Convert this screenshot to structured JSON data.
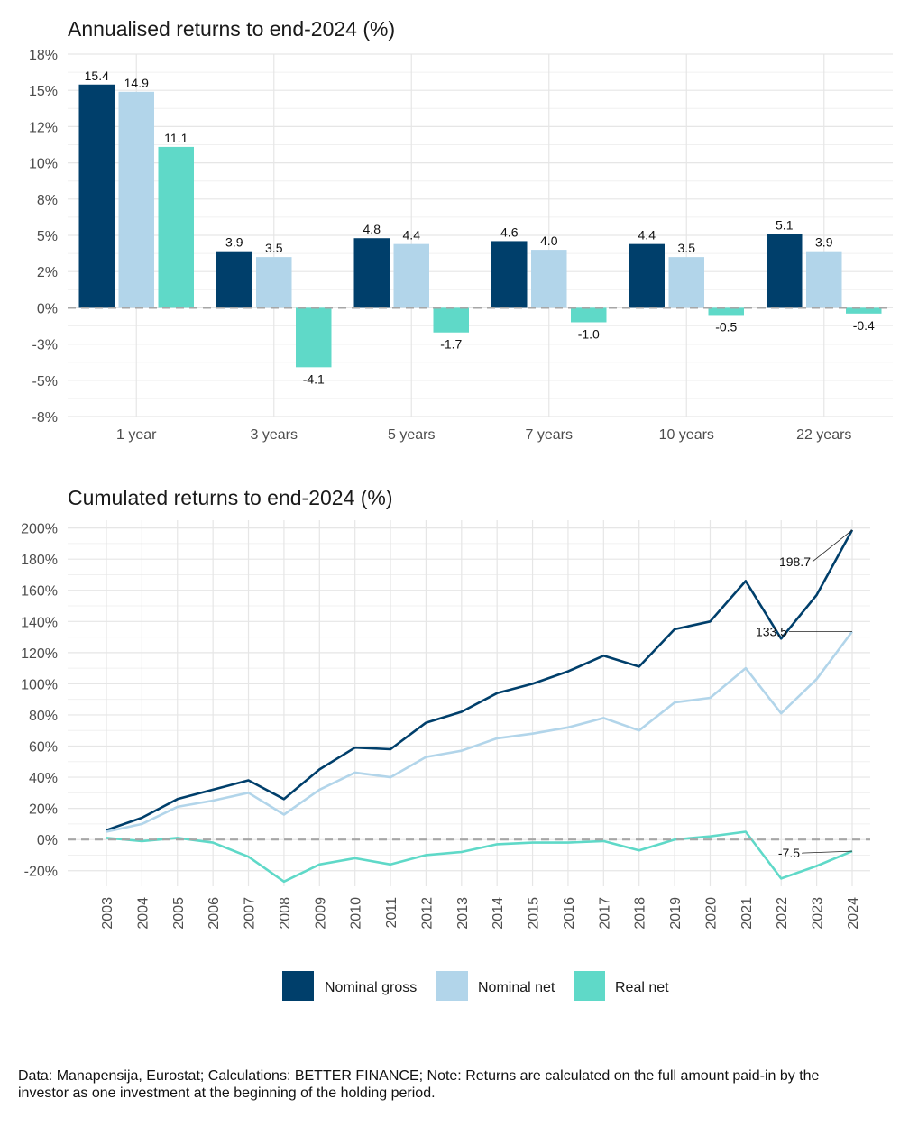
{
  "colors": {
    "nominal_gross": "#003f6b",
    "nominal_net": "#b2d5ea",
    "real_net": "#5fd9c8"
  },
  "chart_data": [
    {
      "type": "bar",
      "title": "Annualised returns to end-2024 (%)",
      "categories": [
        "1 year",
        "3 years",
        "5 years",
        "7 years",
        "10 years",
        "22 years"
      ],
      "series": [
        {
          "name": "Nominal gross",
          "values": [
            15.4,
            3.9,
            4.8,
            4.6,
            4.4,
            5.1
          ]
        },
        {
          "name": "Nominal net",
          "values": [
            14.9,
            3.5,
            4.4,
            4.0,
            3.5,
            3.9
          ]
        },
        {
          "name": "Real net",
          "values": [
            11.1,
            -4.1,
            -1.7,
            -1.0,
            -0.5,
            -0.4
          ]
        }
      ],
      "ylim": [
        -7.5,
        17.5
      ],
      "y_ticks": [
        -7.5,
        -5,
        -2.5,
        0,
        2.5,
        5,
        7.5,
        10,
        12.5,
        15,
        17.5
      ],
      "y_tick_labels": [
        "-8%",
        "-5%",
        "-3%",
        "0%",
        "2%",
        "5%",
        "8%",
        "10%",
        "12%",
        "15%",
        "18%"
      ],
      "grid": true,
      "zero_line": "dashed"
    },
    {
      "type": "line",
      "title": "Cumulated returns to end-2024 (%)",
      "x": [
        "2003",
        "2004",
        "2005",
        "2006",
        "2007",
        "2008",
        "2009",
        "2010",
        "2011",
        "2012",
        "2013",
        "2014",
        "2015",
        "2016",
        "2017",
        "2018",
        "2019",
        "2020",
        "2021",
        "2022",
        "2023",
        "2024"
      ],
      "series": [
        {
          "name": "Nominal gross",
          "values": [
            6,
            14,
            26,
            32,
            38,
            26,
            45,
            59,
            58,
            75,
            82,
            94,
            100,
            108,
            118,
            111,
            135,
            140,
            166,
            129,
            157,
            198.7
          ]
        },
        {
          "name": "Nominal net",
          "values": [
            5,
            10,
            21,
            25,
            30,
            16,
            32,
            43,
            40,
            53,
            57,
            65,
            68,
            72,
            78,
            70,
            88,
            91,
            110,
            81,
            103,
            133.5
          ]
        },
        {
          "name": "Real net",
          "values": [
            1,
            -1,
            1,
            -2,
            -11,
            -27,
            -16,
            -12,
            -16,
            -10,
            -8,
            -3,
            -2,
            -2,
            -1,
            -7,
            0,
            2,
            5,
            -25,
            -17,
            -7.5
          ]
        }
      ],
      "end_labels": [
        "198.7",
        "133.5",
        "-7.5"
      ],
      "ylim": [
        -30,
        205
      ],
      "y_ticks": [
        -20,
        0,
        20,
        40,
        60,
        80,
        100,
        120,
        140,
        160,
        180,
        200
      ],
      "y_tick_labels": [
        "-20%",
        "0%",
        "20%",
        "40%",
        "60%",
        "80%",
        "100%",
        "120%",
        "140%",
        "160%",
        "180%",
        "200%"
      ],
      "grid": true,
      "zero_line": "dashed"
    }
  ],
  "legend": {
    "placement": "bottom",
    "items": [
      {
        "label": "Nominal gross",
        "color": "#003f6b"
      },
      {
        "label": "Nominal net",
        "color": "#b2d5ea"
      },
      {
        "label": "Real net",
        "color": "#5fd9c8"
      }
    ]
  },
  "caption": "Data: Manapensija, Eurostat; Calculations: BETTER FINANCE; Note: Returns are calculated on the full amount paid-in by the investor as one investment at the beginning of the holding period."
}
